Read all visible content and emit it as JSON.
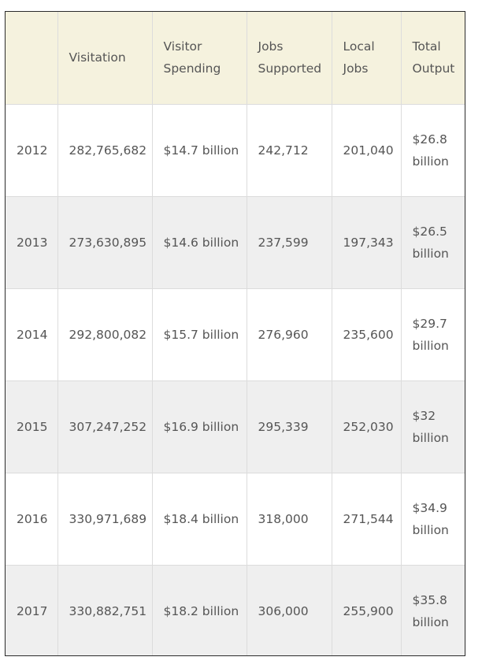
{
  "table": {
    "headers": [
      "",
      "Visitation",
      "Visitor Spending",
      "Jobs Supported",
      "Local Jobs",
      "Total Output"
    ],
    "rows": [
      [
        "2012",
        "282,765,682",
        "$14.7 billion",
        "242,712",
        "201,040",
        "$26.8 billion"
      ],
      [
        "2013",
        "273,630,895",
        "$14.6 billion",
        "237,599",
        "197,343",
        "$26.5 billion"
      ],
      [
        "2014",
        "292,800,082",
        "$15.7 billion",
        "276,960",
        "235,600",
        "$29.7 billion"
      ],
      [
        "2015",
        "307,247,252",
        "$16.9 billion",
        "295,339",
        "252,030",
        "$32 billion"
      ],
      [
        "2016",
        "330,971,689",
        "$18.4 billion",
        "318,000",
        "271,544",
        "$34.9 billion"
      ],
      [
        "2017",
        "330,882,751",
        "$18.2 billion",
        "306,000",
        "255,900",
        "$35.8 billion"
      ]
    ]
  }
}
